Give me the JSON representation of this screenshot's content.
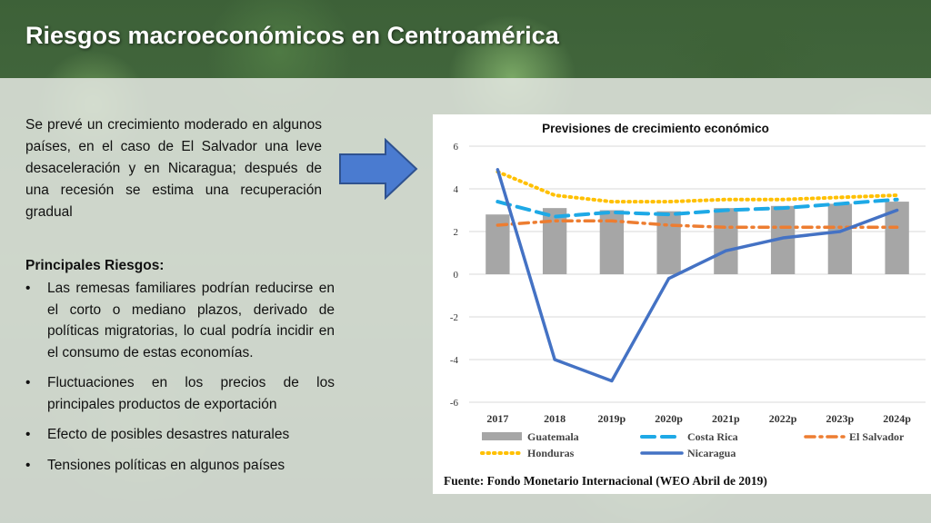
{
  "slide": {
    "title": "Riesgos macroeconómicos en Centroamérica",
    "intro": "Se prevé un crecimiento moderado en algunos países, en el caso de El Salvador una leve desaceleración y en Nicaragua; después de una recesión se estima una recuperación gradual",
    "risks_heading": "Principales Riesgos:",
    "risks": [
      "Las remesas familiares podrían reducirse en el corto o mediano plazos, derivado de políticas migratorias, lo cual podría incidir en el consumo de estas economías.",
      "Fluctuaciones en los precios de los principales productos de exportación",
      "Efecto de posibles desastres naturales",
      "Tensiones políticas en algunos países"
    ],
    "bullet_symbol": "•",
    "arrow_icon": "right-arrow-icon"
  },
  "chart_data": {
    "type": "bar",
    "title": "Previsiones de crecimiento económico",
    "categories": [
      "2017",
      "2018",
      "2019p",
      "2020p",
      "2021p",
      "2022p",
      "2023p",
      "2024p"
    ],
    "ylim": [
      -6,
      6
    ],
    "yticks": [
      6,
      4,
      2,
      0,
      -2,
      -4,
      -6
    ],
    "grid": true,
    "legend_position": "bottom",
    "source": "Fuente: Fondo Monetario Internacional (WEO Abril de 2019)",
    "series": [
      {
        "name": "Guatemala",
        "render": "bar",
        "color": "#a6a6a6",
        "values": [
          2.8,
          3.1,
          3.0,
          2.95,
          3.1,
          3.2,
          3.3,
          3.4
        ]
      },
      {
        "name": "Costa Rica",
        "render": "line",
        "style": "dashed",
        "color": "#1ea9e6",
        "values": [
          3.4,
          2.7,
          2.9,
          2.8,
          3.0,
          3.1,
          3.3,
          3.5
        ]
      },
      {
        "name": "El Salvador",
        "render": "line",
        "style": "dashdot",
        "color": "#ed7d31",
        "values": [
          2.3,
          2.5,
          2.5,
          2.3,
          2.2,
          2.2,
          2.2,
          2.2
        ]
      },
      {
        "name": "Honduras",
        "render": "line",
        "style": "dotted",
        "color": "#ffc000",
        "values": [
          4.8,
          3.7,
          3.4,
          3.4,
          3.5,
          3.5,
          3.6,
          3.7
        ]
      },
      {
        "name": "Nicaragua",
        "render": "line",
        "style": "solid",
        "color": "#4472c4",
        "values": [
          4.9,
          -4.0,
          -5.0,
          -0.2,
          1.1,
          1.7,
          2.0,
          3.0
        ]
      }
    ]
  }
}
